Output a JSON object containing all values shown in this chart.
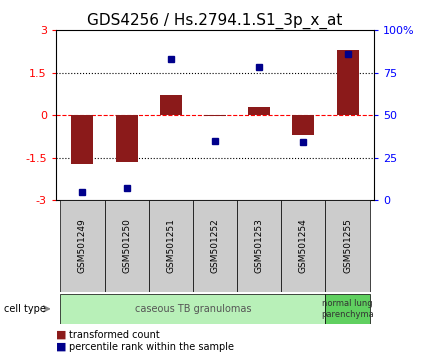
{
  "title": "GDS4256 / Hs.2794.1.S1_3p_x_at",
  "samples": [
    "GSM501249",
    "GSM501250",
    "GSM501251",
    "GSM501252",
    "GSM501253",
    "GSM501254",
    "GSM501255"
  ],
  "red_values": [
    -1.72,
    -1.65,
    0.72,
    -0.05,
    0.3,
    -0.7,
    2.3
  ],
  "blue_values_pct": [
    5,
    7,
    83,
    35,
    78,
    34,
    86
  ],
  "ylim_left": [
    -3,
    3
  ],
  "ylim_right": [
    0,
    100
  ],
  "yticks_left": [
    -3,
    -1.5,
    0,
    1.5,
    3
  ],
  "yticks_right": [
    0,
    25,
    50,
    75,
    100
  ],
  "ytick_labels_left": [
    "-3",
    "-1.5",
    "0",
    "1.5",
    "3"
  ],
  "ytick_labels_right": [
    "0",
    "25",
    "50",
    "75",
    "100%"
  ],
  "hlines": [
    1.5,
    -1.5
  ],
  "hline_red": 0,
  "cell_type_group1_label": "caseous TB granulomas",
  "cell_type_group1_samples": [
    0,
    1,
    2,
    3,
    4,
    5
  ],
  "cell_type_group1_color": "#b8f0b8",
  "cell_type_group2_label": "normal lung\nparenchyma",
  "cell_type_group2_samples": [
    6
  ],
  "cell_type_group2_color": "#60d060",
  "cell_type_label": "cell type",
  "legend_red": "transformed count",
  "legend_blue": "percentile rank within the sample",
  "bar_color": "#8b1a1a",
  "dot_color": "#00008b",
  "xtick_bg": "#d0d0d0",
  "background_color": "#ffffff",
  "plot_bg": "#ffffff",
  "title_fontsize": 11,
  "tick_fontsize": 8,
  "bar_width": 0.5
}
